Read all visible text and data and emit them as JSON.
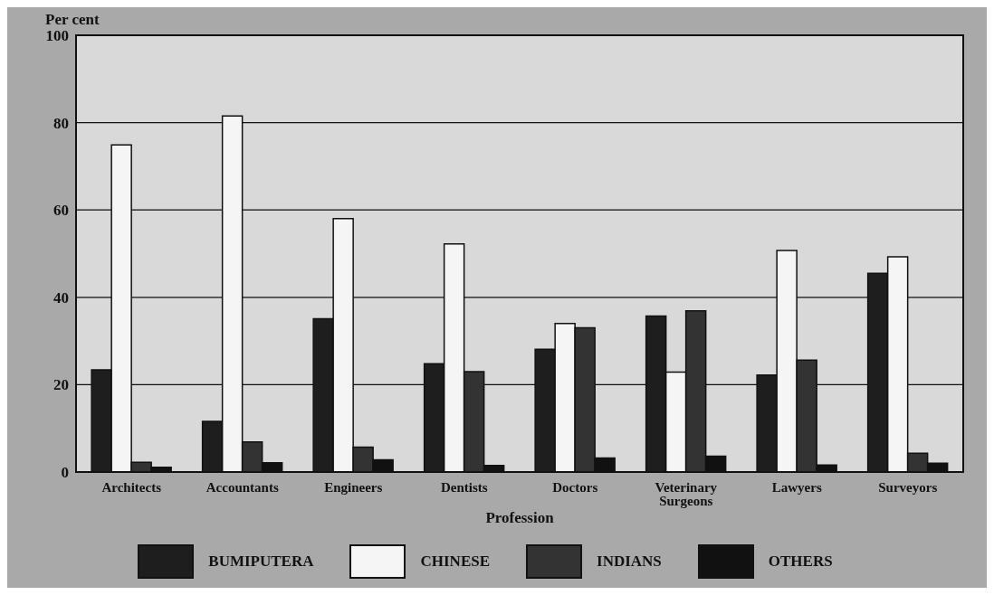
{
  "chart_data": {
    "type": "bar",
    "ylabel": "Per cent",
    "xlabel": "Profession",
    "categories": [
      "Architects",
      "Accountants",
      "Engineers",
      "Dentists",
      "Doctors",
      "Veterinary Surgeons",
      "Lawyers",
      "Surveyors"
    ],
    "series": [
      {
        "name": "BUMIPUTERA",
        "color": "#1e1e1e",
        "values": [
          23.4,
          11.6,
          35.1,
          24.8,
          28.1,
          35.7,
          22.2,
          45.5
        ]
      },
      {
        "name": "CHINESE",
        "color": "#f5f5f5",
        "values": [
          74.9,
          81.5,
          58,
          52.2,
          34,
          22.9,
          50.7,
          49.3
        ]
      },
      {
        "name": "INDIANS",
        "color": "#333333",
        "values": [
          2.2,
          6.9,
          5.7,
          23,
          33,
          36.9,
          25.6,
          4.3
        ]
      },
      {
        "name": "OTHERS",
        "color": "#111111",
        "values": [
          1.1,
          2.1,
          2.8,
          1.5,
          3.2,
          3.6,
          1.6,
          2
        ]
      }
    ],
    "ylim": [
      0,
      100
    ],
    "yticks": [
      0,
      20,
      40,
      60,
      80,
      100
    ],
    "grid": "y",
    "legend": "bottom"
  }
}
